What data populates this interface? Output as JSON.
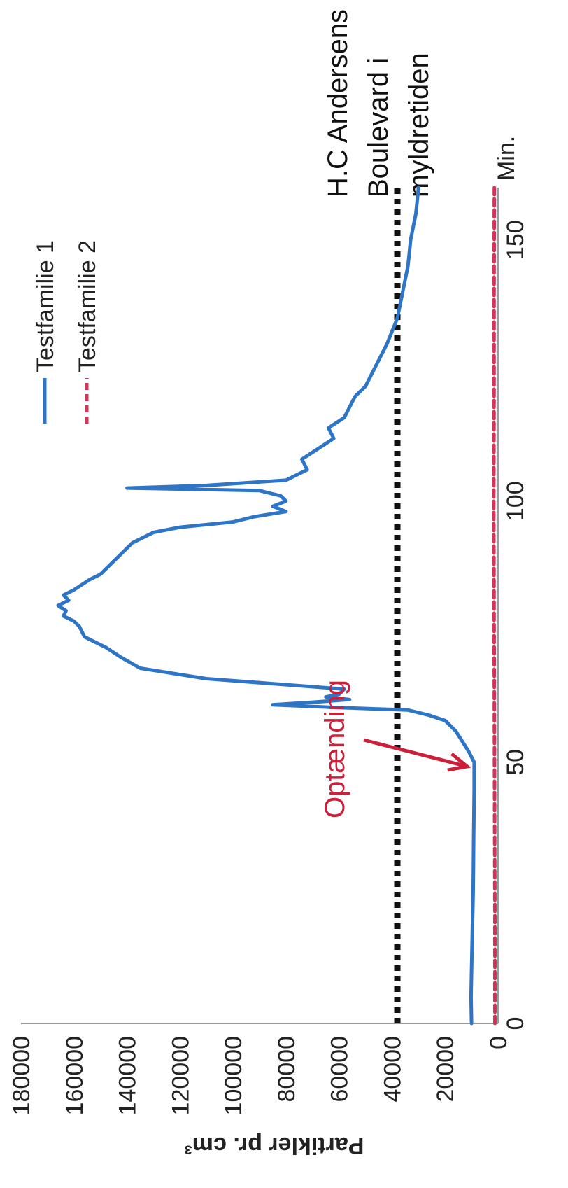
{
  "chart_data": {
    "type": "line",
    "orientation": "rotated-90-clockwise",
    "xlabel": "Min.",
    "ylabel": "Partikler pr. cm³",
    "xlim": [
      0,
      160
    ],
    "ylim": [
      0,
      180000
    ],
    "x_ticks": [
      "0",
      "50",
      "100",
      "150"
    ],
    "y_ticks": [
      "0",
      "20000",
      "40000",
      "60000",
      "80000",
      "100000",
      "120000",
      "140000",
      "160000",
      "180000"
    ],
    "grid": false,
    "legend_position": "top-right",
    "series": [
      {
        "name": "Testfamilie 1",
        "color": "#2e75c7",
        "style": "solid",
        "x": [
          0,
          5,
          10,
          15,
          20,
          25,
          30,
          35,
          40,
          45,
          48,
          50,
          52,
          54,
          56,
          58,
          59,
          60,
          60.5,
          61,
          61.5,
          62,
          62.5,
          63,
          64,
          66,
          68,
          70,
          72,
          74,
          76,
          77,
          78,
          79,
          80,
          81,
          82,
          83,
          84,
          85,
          86,
          88,
          90,
          92,
          94,
          95,
          96,
          97,
          98,
          99,
          100,
          101,
          102,
          102.5,
          103,
          104,
          105,
          106,
          108,
          110,
          112,
          114,
          116,
          118,
          120,
          122,
          124,
          126,
          128,
          130,
          135,
          140,
          145,
          150,
          155,
          160
        ],
        "y": [
          10000,
          10200,
          10000,
          9800,
          9600,
          9400,
          9300,
          9200,
          9100,
          9000,
          9000,
          9000,
          11000,
          13500,
          16000,
          20000,
          26000,
          34000,
          62000,
          85000,
          70000,
          56000,
          65000,
          60000,
          58000,
          110000,
          135000,
          142000,
          148000,
          156000,
          158000,
          160000,
          164000,
          163000,
          166000,
          162000,
          164000,
          160000,
          157000,
          154000,
          150000,
          146000,
          142000,
          138000,
          130000,
          120000,
          100000,
          92000,
          80000,
          85000,
          80000,
          82000,
          90000,
          140000,
          110000,
          80000,
          76000,
          72000,
          74000,
          68000,
          62000,
          64000,
          58000,
          56000,
          54000,
          50000,
          48000,
          46000,
          44000,
          42000,
          38000,
          36000,
          34000,
          33000,
          31000,
          30000
        ]
      },
      {
        "name": "Testfamilie 2",
        "color": "#d6335a",
        "style": "dashed",
        "x": [
          0,
          20,
          40,
          60,
          80,
          100,
          120,
          140,
          160
        ],
        "y": [
          1200,
          1200,
          1300,
          1400,
          1500,
          1600,
          1500,
          1500,
          1400
        ]
      }
    ],
    "reference_line": {
      "value": 38000,
      "label": [
        "H.C Andersens",
        "Boulevard i",
        "myldretiden"
      ],
      "color": "#111111",
      "style": "dotted"
    },
    "annotation": {
      "text": "Optænding",
      "color": "#cc1f3a",
      "target": {
        "x": 50,
        "y": 9000
      }
    }
  }
}
